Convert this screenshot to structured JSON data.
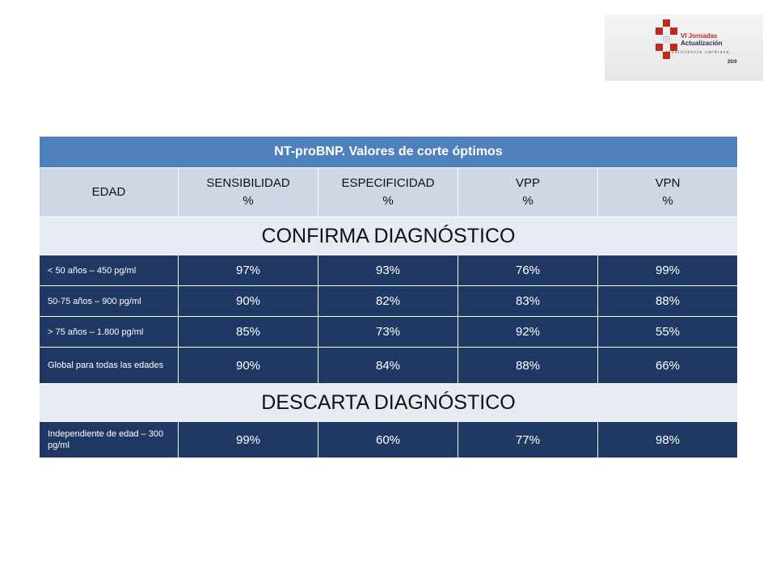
{
  "logo": {
    "line1": "VI Jornadas",
    "line2": "Actualización",
    "sub_pre": "insuficien",
    "sub_hl": "cia",
    "sub_post": " cardiaca",
    "year_a": "20",
    "year_b": "/",
    "year_c": "0",
    "colors": {
      "red": "#c0281e",
      "navy": "#1e2a5a"
    }
  },
  "table": {
    "title": "NT-proBNP. Valores de corte óptimos",
    "headers": [
      {
        "line1": "EDAD",
        "line2": ""
      },
      {
        "line1": "SENSIBILIDAD",
        "line2": "%"
      },
      {
        "line1": "ESPECIFICIDAD",
        "line2": "%"
      },
      {
        "line1": "VPP",
        "line2": "%"
      },
      {
        "line1": "VPN",
        "line2": "%"
      }
    ],
    "section_confirm": "CONFIRMA DIAGNÓSTICO",
    "confirm_rows": [
      {
        "label": "< 50 años – 450 pg/ml",
        "values": [
          "97%",
          "93%",
          "76%",
          "99%"
        ]
      },
      {
        "label": "50-75 años – 900 pg/ml",
        "values": [
          "90%",
          "82%",
          "83%",
          "88%"
        ]
      },
      {
        "label": "> 75 años – 1.800 pg/ml",
        "values": [
          "85%",
          "73%",
          "92%",
          "55%"
        ]
      },
      {
        "label": "Global para todas las edades",
        "values": [
          "90%",
          "84%",
          "88%",
          "66%"
        ]
      }
    ],
    "section_discard": "DESCARTA DIAGNÓSTICO",
    "discard_rows": [
      {
        "label": "Independiente de edad – 300 pg/ml",
        "values": [
          "99%",
          "60%",
          "77%",
          "98%"
        ]
      }
    ],
    "colors": {
      "title": "#4f81bd",
      "header": "#cfd7e6",
      "section": "#e6eaf2",
      "data": "#1f3864"
    }
  }
}
